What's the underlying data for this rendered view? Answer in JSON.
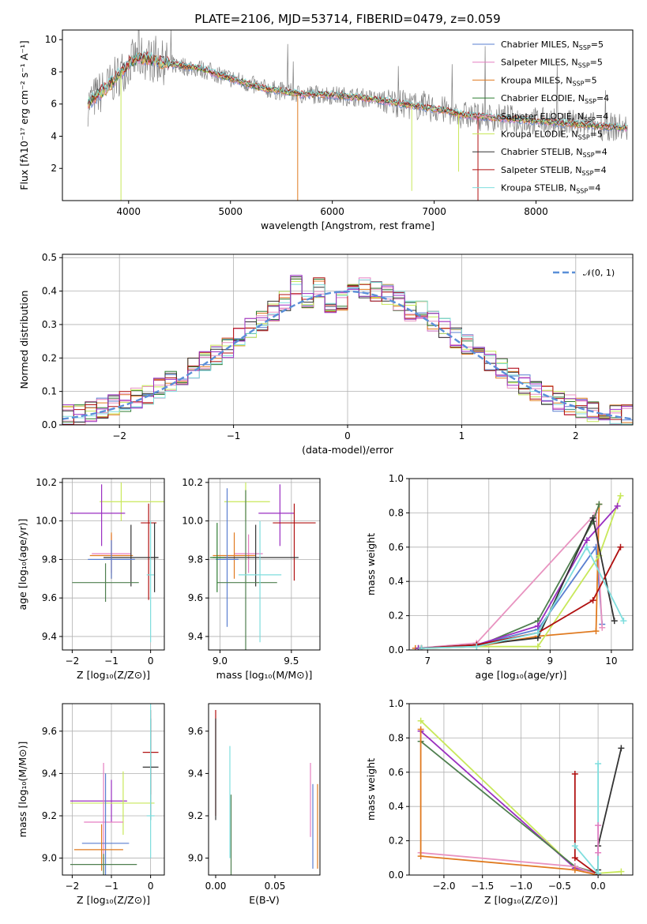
{
  "colors": [
    "#5a7fd0",
    "#e57ec2",
    "#e07a1f",
    "#2e7d32",
    "#e893c0",
    "#c8e85a",
    "#333333",
    "#b01010",
    "#7fdede",
    "#9a2fc1",
    "#4f7f4f",
    "#808080"
  ],
  "chart_data": [
    {
      "id": "spectrum",
      "type": "line",
      "title": "PLATE=2106, MJD=53714, FIBERID=0479, z=0.059",
      "xlabel": "wavelength [Angstrom, rest frame]",
      "ylabel": "Flux [fλ10⁻¹⁷ erg cm⁻² s⁻¹ A⁻¹]",
      "xlim": [
        3350,
        8950
      ],
      "ylim": [
        0,
        10.6
      ],
      "xticks": [
        4000,
        5000,
        6000,
        7000,
        8000
      ],
      "yticks": [
        2,
        4,
        6,
        8,
        10
      ],
      "grid": false,
      "legend_placement": "top-right",
      "continuum": {
        "x": [
          3600,
          3700,
          3800,
          3900,
          4000,
          4100,
          4200,
          4300,
          4500,
          4700,
          4900,
          5100,
          5300,
          5500,
          5700,
          5900,
          6100,
          6300,
          6500,
          6700,
          6900,
          7100,
          7300,
          7500,
          7700,
          7900,
          8100,
          8300,
          8500,
          8700,
          8900
        ],
        "y": [
          6.0,
          6.6,
          7.1,
          7.8,
          8.5,
          8.9,
          8.8,
          8.6,
          8.4,
          8.2,
          7.8,
          7.4,
          7.0,
          6.8,
          6.6,
          6.6,
          6.5,
          6.4,
          6.2,
          6.0,
          5.8,
          5.6,
          5.3,
          5.2,
          5.1,
          5.0,
          4.9,
          4.8,
          4.7,
          4.6,
          4.5
        ]
      },
      "dips": [
        {
          "x": 3925,
          "y": 0.0,
          "series": "Kroupa ELODIE"
        },
        {
          "x": 5660,
          "y": 0.0,
          "series": "Kroupa MILES"
        },
        {
          "x": 6780,
          "y": 0.6,
          "series": "Kroupa ELODIE"
        },
        {
          "x": 7240,
          "y": 1.8,
          "series": "Kroupa ELODIE"
        },
        {
          "x": 7430,
          "y": 0.0,
          "series": "Salpeter STELIB"
        }
      ],
      "legend": [
        {
          "label": "Chabrier MILES, N",
          "sub": "SSP",
          "tail": "=5"
        },
        {
          "label": "Salpeter MILES, N",
          "sub": "SSP",
          "tail": "=5"
        },
        {
          "label": "Kroupa MILES, N",
          "sub": "SSP",
          "tail": "=5"
        },
        {
          "label": "Chabrier ELODIE, N",
          "sub": "SSP",
          "tail": "=4"
        },
        {
          "label": "Salpeter ELODIE, N",
          "sub": "SSP",
          "tail": "=4"
        },
        {
          "label": "Kroupa ELODIE, N",
          "sub": "SSP",
          "tail": "=5"
        },
        {
          "label": "Chabrier STELIB, N",
          "sub": "SSP",
          "tail": "=4"
        },
        {
          "label": "Salpeter STELIB, N",
          "sub": "SSP",
          "tail": "=4"
        },
        {
          "label": "Kroupa STELIB, N",
          "sub": "SSP",
          "tail": "=4"
        }
      ]
    },
    {
      "id": "residuals",
      "type": "step",
      "xlabel": "(data-model)/error",
      "ylabel": "Normed distribution",
      "xlim": [
        -2.5,
        2.5
      ],
      "ylim": [
        0,
        0.51
      ],
      "xticks": [
        -2,
        -1,
        0,
        1,
        2
      ],
      "yticks": [
        0.0,
        0.1,
        0.2,
        0.3,
        0.4,
        0.5
      ],
      "grid": true,
      "legend_placement": "top-right",
      "legend": "𝒩(0, 1)",
      "bins_start": -2.5,
      "bin_width": 0.1,
      "histogram": [
        0.03,
        0.03,
        0.04,
        0.05,
        0.06,
        0.07,
        0.08,
        0.09,
        0.11,
        0.13,
        0.15,
        0.17,
        0.19,
        0.21,
        0.23,
        0.26,
        0.29,
        0.31,
        0.34,
        0.37,
        0.42,
        0.38,
        0.41,
        0.35,
        0.37,
        0.39,
        0.41,
        0.4,
        0.39,
        0.37,
        0.34,
        0.34,
        0.31,
        0.29,
        0.26,
        0.24,
        0.21,
        0.19,
        0.17,
        0.14,
        0.12,
        0.1,
        0.09,
        0.07,
        0.06,
        0.05,
        0.04,
        0.04,
        0.03,
        0.03
      ]
    },
    {
      "id": "age-vs-Z",
      "type": "errorbar",
      "xlabel": "Z [log₁₀(Z/Z⊙)]",
      "ylabel": "age  [log₁₀(age/yr)]",
      "xlim": [
        -2.25,
        0.35
      ],
      "ylim": [
        9.33,
        10.22
      ],
      "xticks": [
        -2,
        -1,
        0
      ],
      "yticks": [
        9.4,
        9.6,
        9.8,
        10.0,
        10.2
      ],
      "grid": true,
      "points": [
        {
          "x": -0.75,
          "xerr": [
            0.55,
            1.25
          ],
          "y": 10.1,
          "yerr": [
            0.1,
            0.1
          ],
          "color": 5
        },
        {
          "x": -1.25,
          "xerr": [
            0.8,
            0.6
          ],
          "y": 10.04,
          "yerr": [
            0.17,
            0.15
          ],
          "color": 9
        },
        {
          "x": -0.05,
          "xerr": [
            0.2,
            0.2
          ],
          "y": 9.99,
          "yerr": [
            0.4,
            0.1
          ],
          "color": 7
        },
        {
          "x": -1.0,
          "xerr": [
            0.5,
            0.5
          ],
          "y": 9.83,
          "yerr": [
            0.1,
            0.1
          ],
          "color": 1
        },
        {
          "x": -1.0,
          "xerr": [
            0.55,
            0.55
          ],
          "y": 9.82,
          "yerr": [
            0.12,
            0.12
          ],
          "color": 2
        },
        {
          "x": -0.5,
          "xerr": [
            0.7,
            0.7
          ],
          "y": 9.81,
          "yerr": [
            0.15,
            0.17
          ],
          "color": 6
        },
        {
          "x": -1.0,
          "xerr": [
            0.6,
            0.6
          ],
          "y": 9.8,
          "yerr": [
            0.1,
            0.1
          ],
          "color": 0
        },
        {
          "x": -1.15,
          "xerr": [
            0.85,
            0.85
          ],
          "y": 9.68,
          "yerr": [
            0.1,
            0.1
          ],
          "color": 10
        },
        {
          "x": 0.0,
          "xerr": [
            0.1,
            0.1
          ],
          "y": 9.72,
          "yerr": [
            0.35,
            0.28
          ],
          "color": 8
        },
        {
          "x": 0.1,
          "xerr": [
            0.1,
            0.1
          ],
          "y": 9.81,
          "yerr": [
            0.18,
            0.18
          ],
          "color": 6
        }
      ]
    },
    {
      "id": "age-vs-mass",
      "type": "errorbar",
      "xlabel": "mass [log₁₀(M/M⊙)]",
      "ylabel": "",
      "xlim": [
        8.92,
        9.7
      ],
      "ylim": [
        9.33,
        10.22
      ],
      "xticks": [
        9.0,
        9.5
      ],
      "yticks": [
        9.4,
        9.6,
        9.8,
        10.0,
        10.2
      ],
      "grid": true,
      "points": [
        {
          "x": 9.18,
          "xerr": [
            0.15,
            0.17
          ],
          "y": 10.1,
          "yerr": [
            0.1,
            0.1
          ],
          "color": 5
        },
        {
          "x": 9.42,
          "xerr": [
            0.15,
            0.1
          ],
          "y": 10.04,
          "yerr": [
            0.17,
            0.15
          ],
          "color": 9
        },
        {
          "x": 9.52,
          "xerr": [
            0.15,
            0.15
          ],
          "y": 9.99,
          "yerr": [
            0.3,
            0.1
          ],
          "color": 7
        },
        {
          "x": 9.2,
          "xerr": [
            0.1,
            0.1
          ],
          "y": 9.83,
          "yerr": [
            0.1,
            0.1
          ],
          "color": 1
        },
        {
          "x": 9.1,
          "xerr": [
            0.15,
            0.15
          ],
          "y": 9.82,
          "yerr": [
            0.12,
            0.12
          ],
          "color": 2
        },
        {
          "x": 9.25,
          "xerr": [
            0.3,
            0.3
          ],
          "y": 9.81,
          "yerr": [
            0.15,
            0.17
          ],
          "color": 6
        },
        {
          "x": 9.05,
          "xerr": [
            0.08,
            0.08
          ],
          "y": 9.8,
          "yerr": [
            0.35,
            0.37
          ],
          "color": 0
        },
        {
          "x": 9.18,
          "xerr": [
            0.2,
            0.22
          ],
          "y": 9.68,
          "yerr": [
            0.48,
            0.48
          ],
          "color": 10
        },
        {
          "x": 9.28,
          "xerr": [
            0.15,
            0.15
          ],
          "y": 9.72,
          "yerr": [
            0.35,
            0.28
          ],
          "color": 8
        },
        {
          "x": 8.98,
          "xerr": [
            0.05,
            0.05
          ],
          "y": 9.81,
          "yerr": [
            0.18,
            0.18
          ],
          "color": 3
        }
      ]
    },
    {
      "id": "weight-vs-age",
      "type": "line",
      "xlabel": "age  [log₁₀(age/yr)]",
      "ylabel": "mass weight",
      "xlim": [
        6.7,
        10.35
      ],
      "ylim": [
        0,
        1.0
      ],
      "xticks": [
        7,
        8,
        9,
        10
      ],
      "yticks": [
        0.0,
        0.2,
        0.4,
        0.6,
        0.8,
        1.0
      ],
      "grid": true,
      "series": [
        {
          "color": 0,
          "x": [
            6.85,
            7.8,
            8.8,
            9.75,
            9.85
          ],
          "y": [
            0.01,
            0.03,
            0.12,
            0.6,
            0.15
          ]
        },
        {
          "color": 4,
          "x": [
            6.85,
            7.8,
            9.75,
            9.85
          ],
          "y": [
            0.01,
            0.04,
            0.8,
            0.13
          ]
        },
        {
          "color": 2,
          "x": [
            6.8,
            7.8,
            8.8,
            9.75,
            9.8
          ],
          "y": [
            0.01,
            0.02,
            0.08,
            0.11,
            0.85
          ]
        },
        {
          "color": 10,
          "x": [
            6.85,
            7.8,
            8.8,
            9.7,
            9.8
          ],
          "y": [
            0.01,
            0.02,
            0.17,
            0.75,
            0.85
          ]
        },
        {
          "color": 5,
          "x": [
            6.9,
            7.8,
            8.8,
            9.8,
            10.15
          ],
          "y": [
            0.01,
            0.02,
            0.02,
            0.55,
            0.9
          ]
        },
        {
          "color": 9,
          "x": [
            6.85,
            7.8,
            8.8,
            9.6,
            10.1
          ],
          "y": [
            0.01,
            0.03,
            0.14,
            0.64,
            0.84
          ]
        },
        {
          "color": 6,
          "x": [
            6.9,
            7.8,
            8.8,
            9.7,
            10.05
          ],
          "y": [
            0.01,
            0.03,
            0.07,
            0.77,
            0.17
          ]
        },
        {
          "color": 7,
          "x": [
            6.9,
            7.8,
            8.8,
            9.7,
            10.15
          ],
          "y": [
            0.01,
            0.03,
            0.1,
            0.29,
            0.6
          ]
        },
        {
          "color": 8,
          "x": [
            6.9,
            7.8,
            8.8,
            9.6,
            10.2
          ],
          "y": [
            0.01,
            0.02,
            0.1,
            0.6,
            0.17
          ]
        }
      ]
    },
    {
      "id": "mass-vs-Z",
      "type": "errorbar",
      "xlabel": "Z [log₁₀(Z/Z⊙)]",
      "ylabel": "mass [log₁₀(M/M⊙)]",
      "xlim": [
        -2.25,
        0.35
      ],
      "ylim": [
        8.92,
        9.73
      ],
      "xticks": [
        -2,
        -1,
        0
      ],
      "yticks": [
        9.0,
        9.2,
        9.4,
        9.6
      ],
      "grid": true,
      "points": [
        {
          "x": 0.0,
          "xerr": [
            0.2,
            0.2
          ],
          "y": 9.5,
          "yerr": [
            0.2,
            0.2
          ],
          "color": 7
        },
        {
          "x": 0.0,
          "xerr": [
            0.2,
            0.2
          ],
          "y": 9.43,
          "yerr": [
            0.25,
            0.23
          ],
          "color": 6
        },
        {
          "x": -1.0,
          "xerr": [
            1.05,
            0.4
          ],
          "y": 9.27,
          "yerr": [
            0.1,
            0.1
          ],
          "color": 9
        },
        {
          "x": -0.7,
          "xerr": [
            1.35,
            0.8
          ],
          "y": 9.26,
          "yerr": [
            0.15,
            0.15
          ],
          "color": 5
        },
        {
          "x": -1.2,
          "xerr": [
            0.5,
            0.5
          ],
          "y": 9.17,
          "yerr": [
            0.25,
            0.28
          ],
          "color": 1
        },
        {
          "x": 0.0,
          "xerr": [
            0.1,
            0.1
          ],
          "y": 9.2,
          "yerr": [
            0.2,
            0.53
          ],
          "color": 8
        },
        {
          "x": -1.15,
          "xerr": [
            0.6,
            0.6
          ],
          "y": 9.07,
          "yerr": [
            0.15,
            0.33
          ],
          "color": 0
        },
        {
          "x": -1.25,
          "xerr": [
            0.7,
            0.55
          ],
          "y": 9.04,
          "yerr": [
            0.1,
            0.12
          ],
          "color": 2
        },
        {
          "x": -1.2,
          "xerr": [
            0.85,
            0.85
          ],
          "y": 8.97,
          "yerr": [
            0.05,
            0.05
          ],
          "color": 10
        }
      ]
    },
    {
      "id": "mass-vs-EBV",
      "type": "errorbar",
      "xlabel": "E(B-V)",
      "ylabel": "",
      "xlim": [
        -0.006,
        0.088
      ],
      "ylim": [
        8.92,
        9.73
      ],
      "xticks": [
        0.0,
        0.05
      ],
      "yticks": [
        9.0,
        9.2,
        9.4,
        9.6
      ],
      "grid": false,
      "points": [
        {
          "x": 0.0,
          "xerr": [
            0,
            0
          ],
          "y": 9.5,
          "yerr": [
            0.3,
            0.2
          ],
          "color": 7
        },
        {
          "x": 0.0,
          "xerr": [
            0,
            0
          ],
          "y": 9.43,
          "yerr": [
            0.25,
            0.23
          ],
          "color": 6
        },
        {
          "x": 0.012,
          "xerr": [
            0,
            0
          ],
          "y": 9.2,
          "yerr": [
            0.2,
            0.33
          ],
          "color": 8
        },
        {
          "x": 0.013,
          "xerr": [
            0,
            0
          ],
          "y": 9.0,
          "yerr": [
            0.1,
            0.3
          ],
          "color": 10
        },
        {
          "x": 0.08,
          "xerr": [
            0,
            0
          ],
          "y": 9.3,
          "yerr": [
            0.2,
            0.15
          ],
          "color": 1
        },
        {
          "x": 0.082,
          "xerr": [
            0,
            0
          ],
          "y": 9.05,
          "yerr": [
            0.1,
            0.3
          ],
          "color": 0
        },
        {
          "x": 0.086,
          "xerr": [
            0,
            0
          ],
          "y": 9.05,
          "yerr": [
            0.1,
            0.3
          ],
          "color": 2
        }
      ]
    },
    {
      "id": "weight-vs-Z",
      "type": "line",
      "xlabel": "Z [log₁₀(Z/Z⊙)]",
      "ylabel": "mass weight",
      "xlim": [
        -2.45,
        0.45
      ],
      "ylim": [
        0,
        1.0
      ],
      "xticks": [
        -2.0,
        -1.5,
        -1.0,
        -0.5,
        0.0
      ],
      "yticks": [
        0.0,
        0.2,
        0.4,
        0.6,
        0.8,
        1.0
      ],
      "grid": true,
      "series": [
        {
          "color": 5,
          "x": [
            -2.3,
            -0.3,
            0.0,
            0.3
          ],
          "y": [
            0.9,
            0.04,
            0.01,
            0.02
          ]
        },
        {
          "color": 9,
          "x": [
            -2.3,
            -0.3,
            0.0
          ],
          "y": [
            0.84,
            0.04,
            0.01
          ]
        },
        {
          "color": 10,
          "x": [
            -2.3,
            -0.3,
            0.0
          ],
          "y": [
            0.78,
            0.05,
            0.01
          ]
        },
        {
          "color": 4,
          "x": [
            -2.3,
            -0.3,
            0.0
          ],
          "y": [
            0.13,
            0.05,
            0.0
          ]
        },
        {
          "color": 2,
          "x": [
            -2.3,
            -2.3,
            -0.3,
            0.0
          ],
          "y": [
            0.85,
            0.11,
            0.03,
            0.0
          ]
        },
        {
          "color": 7,
          "x": [
            -0.3,
            -0.3,
            0.0
          ],
          "y": [
            0.59,
            0.1,
            0.0
          ]
        },
        {
          "color": 6,
          "x": [
            0.0,
            0.0,
            0.3
          ],
          "y": [
            0.03,
            0.17,
            0.74
          ]
        },
        {
          "color": 8,
          "x": [
            0.0,
            0.0,
            -0.3
          ],
          "y": [
            0.65,
            0.01,
            0.17
          ]
        },
        {
          "color": 1,
          "x": [
            0.0,
            0.0
          ],
          "y": [
            0.13,
            0.29
          ]
        }
      ]
    }
  ]
}
